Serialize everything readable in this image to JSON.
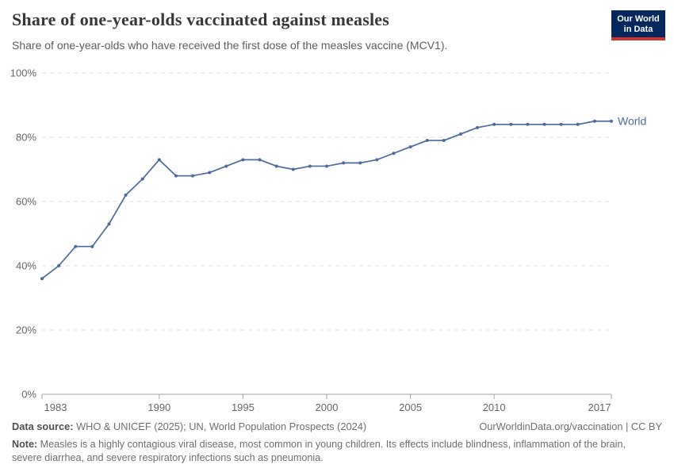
{
  "header": {
    "title": "Share of one-year-olds vaccinated against measles",
    "subtitle": "Share of one-year-olds who have received the first dose of the measles vaccine (MCV1).",
    "logo": {
      "line1": "Our World",
      "line2": "in Data",
      "bg_color": "#04275e",
      "bar_color": "#d0342c"
    }
  },
  "chart_data": {
    "type": "line",
    "title": "Share of one-year-olds vaccinated against measles",
    "x": [
      1983,
      1984,
      1985,
      1986,
      1987,
      1988,
      1989,
      1990,
      1991,
      1992,
      1993,
      1994,
      1995,
      1996,
      1997,
      1998,
      1999,
      2000,
      2001,
      2002,
      2003,
      2004,
      2005,
      2006,
      2007,
      2008,
      2009,
      2010,
      2011,
      2012,
      2013,
      2014,
      2015,
      2016,
      2017
    ],
    "series": [
      {
        "name": "World",
        "color": "#4c6a9c",
        "values": [
          36,
          40,
          46,
          46,
          53,
          62,
          67,
          73,
          68,
          68,
          69,
          71,
          73,
          73,
          71,
          70,
          71,
          71,
          72,
          72,
          73,
          75,
          77,
          79,
          79,
          81,
          83,
          84,
          84,
          84,
          84,
          84,
          84,
          85,
          85
        ]
      }
    ],
    "xlim": [
      1983,
      2017
    ],
    "ylim": [
      0,
      100
    ],
    "x_ticks": [
      1983,
      1990,
      1995,
      2000,
      2005,
      2010,
      2017
    ],
    "y_ticks": [
      0,
      20,
      40,
      60,
      80,
      100
    ],
    "y_suffix": "%",
    "grid": "horizontal-dashed",
    "grid_color": "#dedede",
    "axis_color": "#a3a3a3",
    "tick_label_color": "#666666",
    "legend_position": "end-of-line",
    "end_label": "World"
  },
  "footer": {
    "source_label": "Data source:",
    "source_text": " WHO & UNICEF (2025); UN, World Population Prospects (2024)",
    "link_text": "OurWorldinData.org/vaccination | CC BY",
    "note_label": "Note:",
    "note_text": " Measles is a highly contagious viral disease, most common in young children. Its effects include blindness, inflammation of the brain, severe diarrhea, and severe respiratory infections such as pneumonia."
  }
}
